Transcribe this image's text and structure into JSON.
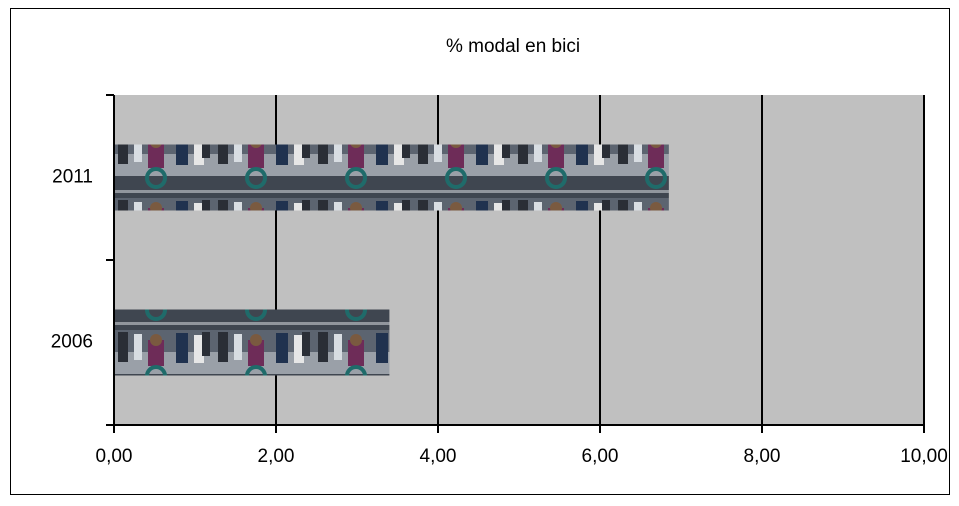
{
  "chart_data": {
    "type": "bar",
    "orientation": "horizontal",
    "title": "% modal en bici",
    "categories": [
      "2006",
      "2011"
    ],
    "values": [
      3.4,
      6.85
    ],
    "xlim": [
      0,
      10
    ],
    "xticks": [
      {
        "value": 0,
        "label": "0,00"
      },
      {
        "value": 2,
        "label": "2,00"
      },
      {
        "value": 4,
        "label": "4,00"
      },
      {
        "value": 6,
        "label": "6,00"
      },
      {
        "value": 8,
        "label": "8,00"
      },
      {
        "value": 10,
        "label": "10,00"
      }
    ],
    "grid": true
  }
}
